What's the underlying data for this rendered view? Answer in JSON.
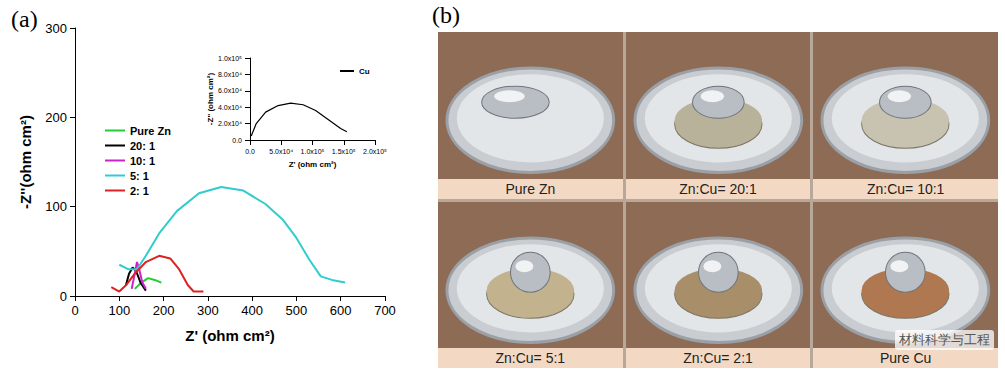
{
  "chart_data": [
    {
      "type": "line",
      "title": "(a)",
      "x_label": "Z' (ohm cm²)",
      "y_label": "-Z''(ohm cm²)",
      "xlim": [
        0,
        700
      ],
      "xticks": [
        0,
        100,
        200,
        300,
        400,
        500,
        600,
        700
      ],
      "ylim": [
        0,
        300
      ],
      "yticks": [
        0,
        100,
        200,
        300
      ],
      "grid": false,
      "legend": "upper left",
      "series": [
        {
          "name": "Pure Zn",
          "color": "#22cc33",
          "x": [
            135,
            150,
            165,
            180,
            195
          ],
          "values": [
            8,
            15,
            20,
            18,
            15
          ]
        },
        {
          "name": "20: 1",
          "color": "#000000",
          "x": [
            115,
            122,
            130,
            138,
            148,
            160
          ],
          "values": [
            12,
            25,
            32,
            28,
            15,
            6
          ]
        },
        {
          "name": "10: 1",
          "color": "#cc22cc",
          "x": [
            128,
            135,
            140,
            145,
            152,
            160
          ],
          "values": [
            8,
            25,
            38,
            30,
            15,
            8
          ]
        },
        {
          "name": "5: 1",
          "color": "#33cccc",
          "x": [
            100,
            120,
            140,
            160,
            190,
            230,
            280,
            330,
            380,
            430,
            470,
            500,
            530,
            555,
            580,
            610
          ],
          "values": [
            35,
            30,
            30,
            45,
            70,
            95,
            115,
            122,
            118,
            103,
            85,
            65,
            40,
            22,
            18,
            15
          ]
        },
        {
          "name": "2: 1",
          "color": "#dd2222",
          "x": [
            82,
            100,
            115,
            135,
            160,
            190,
            215,
            235,
            255,
            268,
            290
          ],
          "values": [
            10,
            5,
            12,
            25,
            38,
            45,
            42,
            30,
            12,
            5,
            5
          ]
        }
      ]
    },
    {
      "type": "line",
      "x_label": "Z' (ohm cm²)",
      "y_label": "-Z'' (ohm cm²)",
      "xlim": [
        0,
        200000
      ],
      "xticks": [
        {
          "value": 0,
          "label": "0.0"
        },
        {
          "value": 50000,
          "label": "5.0x10⁴"
        },
        {
          "value": 100000,
          "label": "1.0x10⁵"
        },
        {
          "value": 150000,
          "label": "1.5x10⁵"
        },
        {
          "value": 200000,
          "label": "2.0x10⁵"
        }
      ],
      "ylim": [
        0,
        100000
      ],
      "yticks": [
        {
          "value": 0,
          "label": "0.0"
        },
        {
          "value": 20000,
          "label": "2.0x10⁴"
        },
        {
          "value": 40000,
          "label": "4.0x10⁴"
        },
        {
          "value": 60000,
          "label": "6.0x10⁴"
        },
        {
          "value": 80000,
          "label": "8.0x10⁴"
        },
        {
          "value": 100000,
          "label": "1.0x10⁵"
        }
      ],
      "grid": false,
      "legend": "upper right",
      "series": [
        {
          "name": "Cu",
          "color": "#000000",
          "x": [
            2000,
            10000,
            25000,
            45000,
            65000,
            85000,
            105000,
            125000,
            145000,
            155000
          ],
          "values": [
            5000,
            20000,
            34000,
            42000,
            45000,
            43000,
            36000,
            25000,
            14000,
            10000
          ]
        }
      ]
    }
  ],
  "photos": {
    "label": "(b)",
    "captions": [
      "Pure Zn",
      "Zn:Cu= 20:1",
      "Zn:Cu= 10:1",
      "Zn:Cu= 5:1",
      "Zn:Cu= 2:1",
      "Pure Cu"
    ]
  },
  "watermark": "材料科学与工程"
}
